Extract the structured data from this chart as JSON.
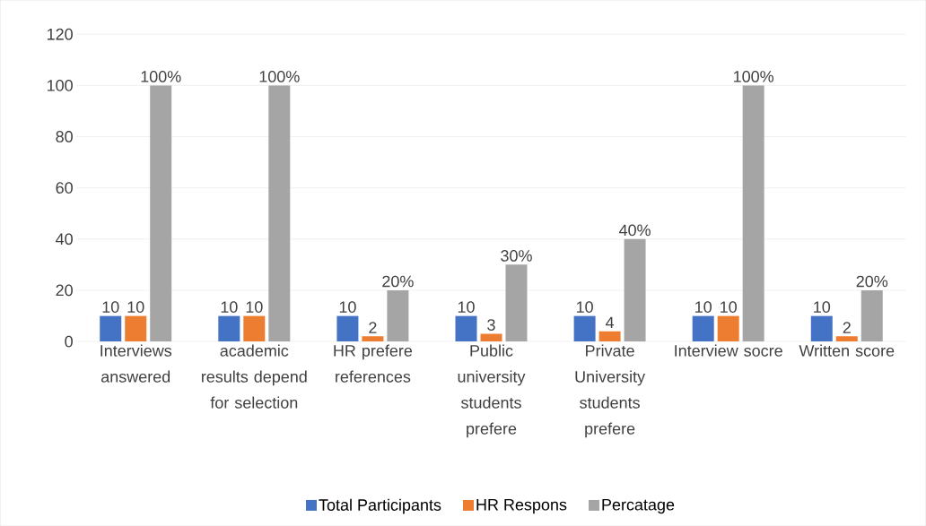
{
  "chart_data": {
    "type": "bar",
    "categories": [
      "Interviews answered",
      "academic results depend for selection",
      "HR prefere references",
      "Public university students prefere",
      "Private University students prefere",
      "Interview socre",
      "Written score"
    ],
    "series": [
      {
        "name": "Total Participants",
        "color": "#4472c4",
        "values": [
          10,
          10,
          10,
          10,
          10,
          10,
          10
        ],
        "value_labels": [
          "10",
          "10",
          "10",
          "10",
          "10",
          "10",
          "10"
        ]
      },
      {
        "name": "HR Respons",
        "color": "#ed7d31",
        "values": [
          10,
          10,
          2,
          3,
          4,
          10,
          2
        ],
        "value_labels": [
          "10",
          "10",
          "2",
          "3",
          "4",
          "10",
          "2"
        ]
      },
      {
        "name": "Percatage",
        "color": "#a5a5a5",
        "values": [
          100,
          100,
          20,
          30,
          40,
          100,
          20
        ],
        "value_labels": [
          "100%",
          "100%",
          "20%",
          "30%",
          "40%",
          "100%",
          "20%"
        ]
      }
    ],
    "ylim": [
      0,
      120
    ],
    "yticks": [
      0,
      20,
      40,
      60,
      80,
      100,
      120
    ],
    "grid": "y",
    "legend": "bottom"
  }
}
